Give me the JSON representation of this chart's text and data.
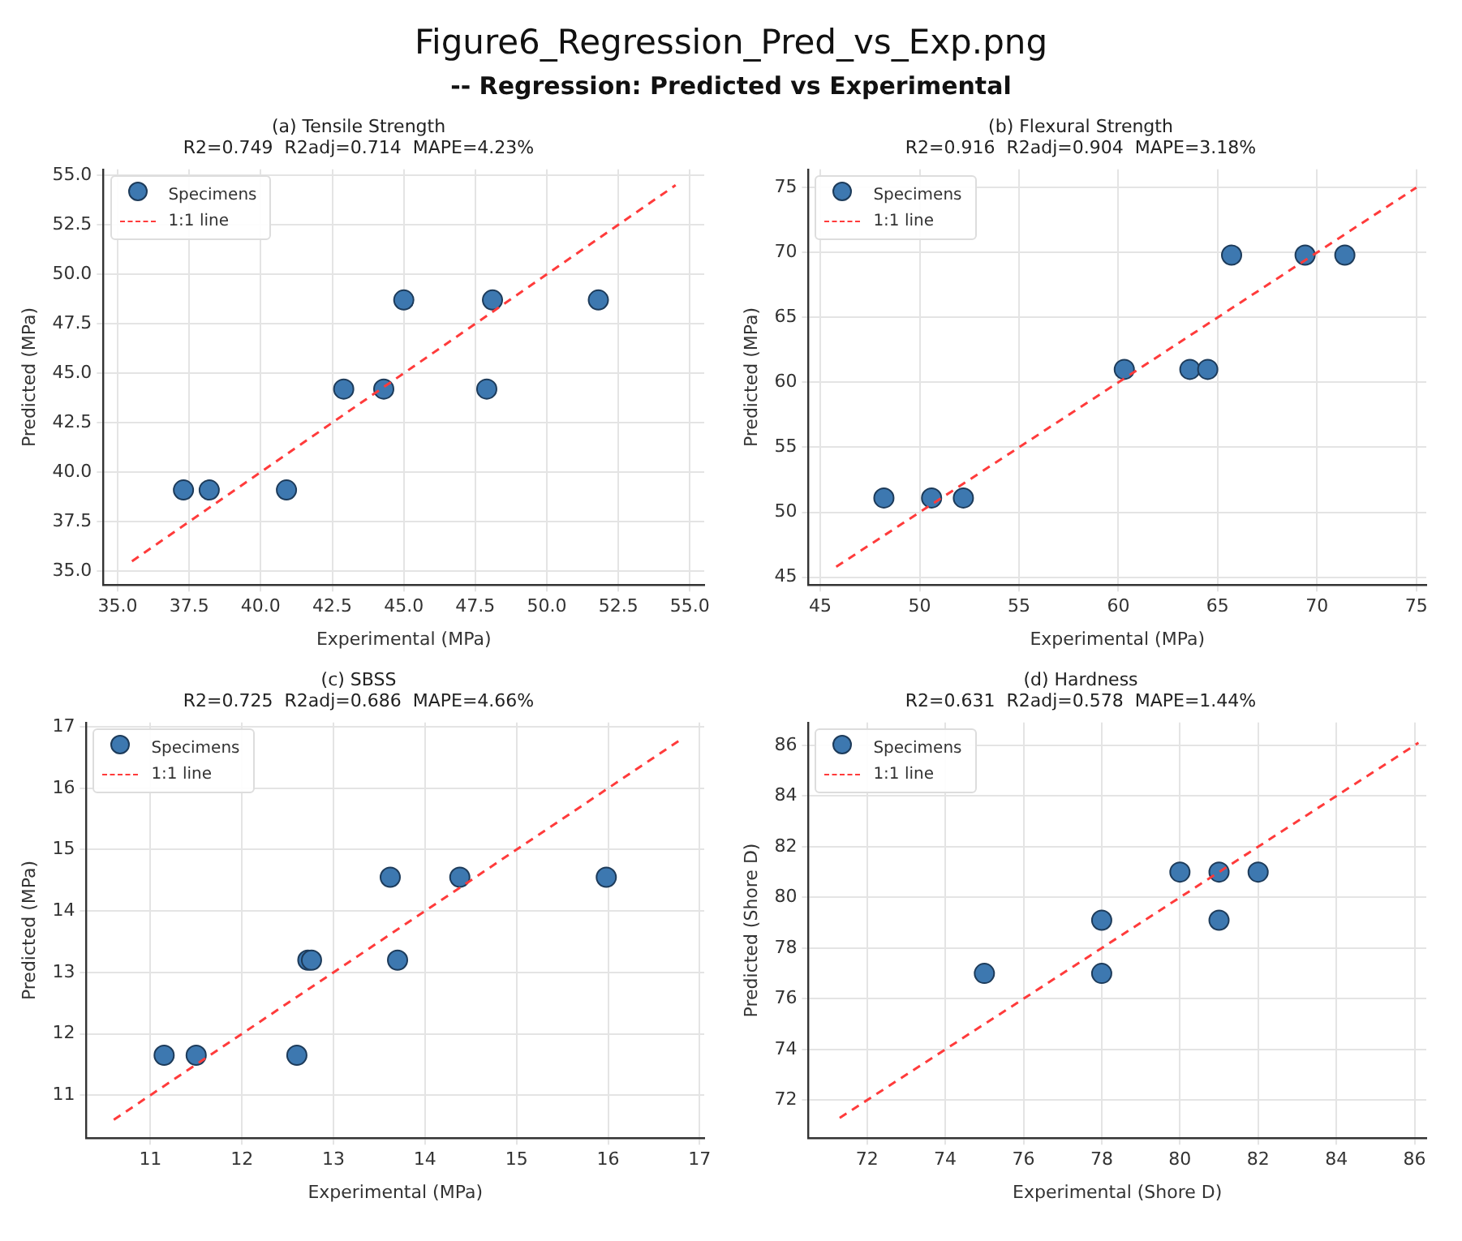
{
  "chart_data": [
    {
      "type": "other",
      "title": "Figure6_Regression_Pred_vs_Exp.png",
      "subtitle": "-- Regression: Predicted vs Experimental"
    },
    {
      "type": "scatter",
      "title": "(a) Tensile Strength",
      "subtitle": "R2=0.749  R2adj=0.714  MAPE=4.23%",
      "xlabel": "Experimental (MPa)",
      "ylabel": "Predicted (MPa)",
      "xlim": [
        34.5,
        55.5
      ],
      "ylim": [
        34.3,
        55.3
      ],
      "xticks": [
        {
          "value": 35,
          "label": "35.0"
        },
        {
          "value": 37.5,
          "label": "37.5"
        },
        {
          "value": 40,
          "label": "40.0"
        },
        {
          "value": 42.5,
          "label": "42.5"
        },
        {
          "value": 45,
          "label": "45.0"
        },
        {
          "value": 47.5,
          "label": "47.5"
        },
        {
          "value": 50,
          "label": "50.0"
        },
        {
          "value": 52.5,
          "label": "52.5"
        },
        {
          "value": 55,
          "label": "55.0"
        }
      ],
      "yticks": [
        {
          "value": 35,
          "label": "35.0"
        },
        {
          "value": 37.5,
          "label": "37.5"
        },
        {
          "value": 40,
          "label": "40.0"
        },
        {
          "value": 42.5,
          "label": "42.5"
        },
        {
          "value": 45,
          "label": "45.0"
        },
        {
          "value": 47.5,
          "label": "47.5"
        },
        {
          "value": 50,
          "label": "50.0"
        },
        {
          "value": 52.5,
          "label": "52.5"
        },
        {
          "value": 55,
          "label": "55.0"
        }
      ],
      "grid": true,
      "legend": "top left",
      "series": [
        {
          "name": "Specimens",
          "type": "scatter",
          "marker": "circle",
          "color": "#3d78b0",
          "x": [
            37.3,
            38.2,
            40.9,
            42.9,
            44.3,
            47.9,
            45.0,
            48.1,
            51.8
          ],
          "values": [
            39.1,
            39.1,
            39.1,
            44.2,
            44.2,
            44.2,
            48.7,
            48.7,
            48.7
          ]
        },
        {
          "name": "1:1 line",
          "type": "line",
          "marker": "none",
          "color": "#ff3b3b",
          "line_style": "dashed",
          "x": [
            35.5,
            54.5
          ],
          "values": [
            35.5,
            54.5
          ]
        }
      ]
    },
    {
      "type": "scatter",
      "title": "(b) Flexural Strength",
      "subtitle": "R2=0.916  R2adj=0.904  MAPE=3.18%",
      "xlabel": "Experimental (MPa)",
      "ylabel": "Predicted (MPa)",
      "xlim": [
        44.4,
        75.5
      ],
      "ylim": [
        44.4,
        76.4
      ],
      "xticks": [
        45,
        50,
        55,
        60,
        65,
        70,
        75
      ],
      "yticks": [
        45,
        50,
        55,
        60,
        65,
        70,
        75
      ],
      "grid": true,
      "legend": "top left",
      "series": [
        {
          "name": "Specimens",
          "type": "scatter",
          "marker": "circle",
          "color": "#3d78b0",
          "x": [
            48.2,
            50.6,
            52.2,
            60.3,
            63.6,
            64.5,
            65.7,
            69.4,
            71.4
          ],
          "values": [
            51.1,
            51.1,
            51.1,
            61.0,
            61.0,
            61.0,
            69.8,
            69.8,
            69.8
          ]
        },
        {
          "name": "1:1 line",
          "type": "line",
          "marker": "none",
          "color": "#ff3b3b",
          "line_style": "dashed",
          "x": [
            45.8,
            75
          ],
          "values": [
            45.8,
            75
          ]
        }
      ]
    },
    {
      "type": "scatter",
      "title": "(c) SBSS",
      "subtitle": "R2=0.725  R2adj=0.686  MAPE=4.66%",
      "xlabel": "Experimental (MPa)",
      "ylabel": "Predicted (MPa)",
      "xlim": [
        10.3,
        17.05
      ],
      "ylim": [
        10.3,
        17.07
      ],
      "xticks": [
        11,
        12,
        13,
        14,
        15,
        16,
        17
      ],
      "yticks": [
        11,
        12,
        13,
        14,
        15,
        16,
        17
      ],
      "grid": true,
      "legend": "top left",
      "series": [
        {
          "name": "Specimens",
          "type": "scatter",
          "marker": "circle",
          "color": "#3d78b0",
          "x": [
            11.15,
            11.5,
            12.6,
            12.72,
            12.76,
            13.7,
            13.62,
            14.38,
            15.98
          ],
          "values": [
            11.65,
            11.65,
            11.65,
            13.2,
            13.2,
            13.2,
            14.55,
            14.55,
            14.55
          ]
        },
        {
          "name": "1:1 line",
          "type": "line",
          "marker": "none",
          "color": "#ff3b3b",
          "line_style": "dashed",
          "x": [
            10.6,
            16.8
          ],
          "values": [
            10.6,
            16.8
          ]
        }
      ]
    },
    {
      "type": "scatter",
      "title": "(d) Hardness",
      "subtitle": "R2=0.631  R2adj=0.578  MAPE=1.44%",
      "xlabel": "Experimental (Shore D)",
      "ylabel": "Predicted (Shore D)",
      "xlim": [
        70.5,
        86.3
      ],
      "ylim": [
        70.5,
        86.9
      ],
      "xticks": [
        72,
        74,
        76,
        78,
        80,
        82,
        84,
        86
      ],
      "yticks": [
        72,
        74,
        76,
        78,
        80,
        82,
        84,
        86
      ],
      "grid": true,
      "legend": "top left",
      "series": [
        {
          "name": "Specimens",
          "type": "scatter",
          "marker": "circle",
          "color": "#3d78b0",
          "x": [
            75,
            78,
            78,
            80,
            81,
            82,
            81
          ],
          "values": [
            77,
            77,
            79.1,
            81,
            81,
            81,
            79.1
          ]
        },
        {
          "name": "1:1 line",
          "type": "line",
          "marker": "none",
          "color": "#ff3b3b",
          "line_style": "dashed",
          "x": [
            71.3,
            86.1
          ],
          "values": [
            71.3,
            86.1
          ]
        }
      ]
    }
  ]
}
